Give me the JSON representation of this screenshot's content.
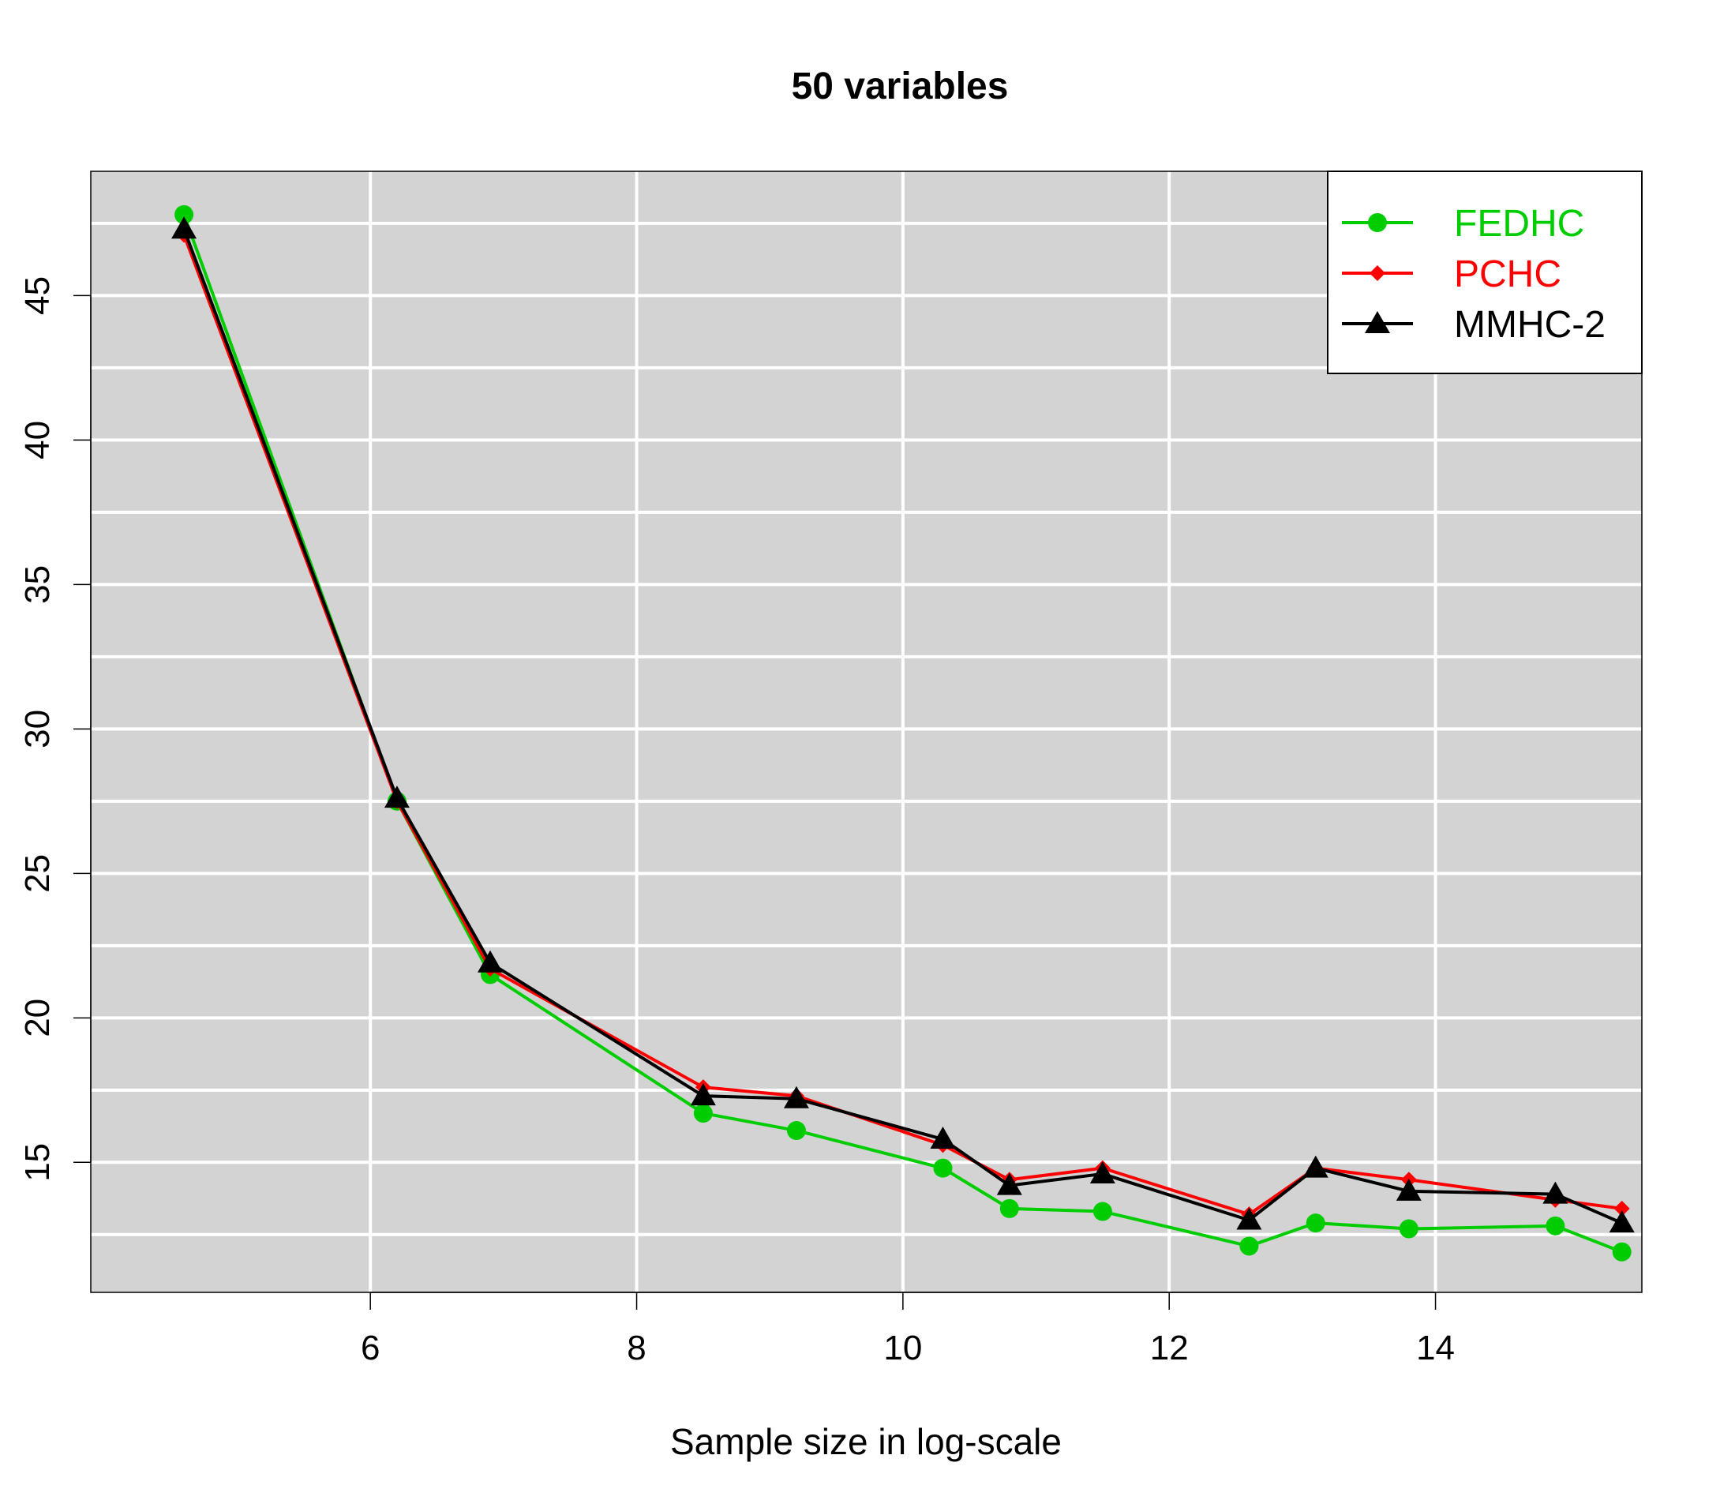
{
  "chart_data": {
    "type": "line",
    "title": "50 variables",
    "xlabel": "Sample size in log-scale",
    "ylabel": "",
    "xlim": [
      3.9,
      15.55
    ],
    "ylim": [
      10.5,
      49.3
    ],
    "xticks": [
      6,
      8,
      10,
      12,
      14
    ],
    "yticks": [
      15,
      20,
      25,
      30,
      35,
      40,
      45
    ],
    "background": "#d3d3d3",
    "grid": true,
    "grid_color": "#ffffff",
    "legend_position": "top-right",
    "x": [
      4.6,
      6.2,
      6.9,
      8.5,
      9.2,
      10.3,
      10.8,
      11.5,
      12.6,
      13.1,
      13.8,
      14.9,
      15.4
    ],
    "series": [
      {
        "name": "FEDHC",
        "color": "#00cd00",
        "marker": "circle",
        "values": [
          47.8,
          27.5,
          21.5,
          16.7,
          16.1,
          14.8,
          13.4,
          13.3,
          12.1,
          12.9,
          12.7,
          12.8,
          11.9
        ]
      },
      {
        "name": "PCHC",
        "color": "#ff0000",
        "marker": "diamond",
        "values": [
          47.1,
          27.5,
          21.7,
          17.6,
          17.3,
          15.6,
          14.4,
          14.8,
          13.2,
          14.8,
          14.4,
          13.7,
          13.4
        ]
      },
      {
        "name": "MMHC-2",
        "color": "#000000",
        "marker": "triangle",
        "values": [
          47.3,
          27.6,
          21.9,
          17.3,
          17.2,
          15.8,
          14.2,
          14.6,
          13.0,
          14.8,
          14.0,
          13.9,
          12.9
        ]
      }
    ]
  }
}
